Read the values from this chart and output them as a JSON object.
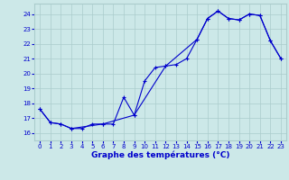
{
  "title": "Graphe des températures (°C)",
  "background_color": "#cce8e8",
  "grid_color": "#aacccc",
  "line_color": "#0000cc",
  "xlim": [
    -0.5,
    23.5
  ],
  "ylim": [
    15.5,
    24.7
  ],
  "yticks": [
    16,
    17,
    18,
    19,
    20,
    21,
    22,
    23,
    24
  ],
  "xticks": [
    0,
    1,
    2,
    3,
    4,
    5,
    6,
    7,
    8,
    9,
    10,
    11,
    12,
    13,
    14,
    15,
    16,
    17,
    18,
    19,
    20,
    21,
    22,
    23
  ],
  "series1_x": [
    0,
    1,
    2,
    3,
    4,
    5,
    6,
    7,
    8,
    9,
    10,
    11,
    12,
    13,
    14,
    15,
    16,
    17,
    18,
    19,
    20,
    21,
    22,
    23
  ],
  "series1_y": [
    17.6,
    16.7,
    16.6,
    16.3,
    16.3,
    16.6,
    16.6,
    16.6,
    18.4,
    17.2,
    19.5,
    20.4,
    20.5,
    20.6,
    21.0,
    22.3,
    23.7,
    24.2,
    23.7,
    23.6,
    24.0,
    23.9,
    22.2,
    21.0
  ],
  "series2_x": [
    0,
    1,
    2,
    3,
    6,
    9,
    12,
    15,
    16,
    17,
    18,
    19,
    20,
    21,
    22,
    23
  ],
  "series2_y": [
    17.6,
    16.7,
    16.6,
    16.3,
    16.6,
    17.2,
    20.5,
    22.3,
    23.7,
    24.2,
    23.7,
    23.6,
    24.0,
    23.9,
    22.2,
    21.0
  ]
}
